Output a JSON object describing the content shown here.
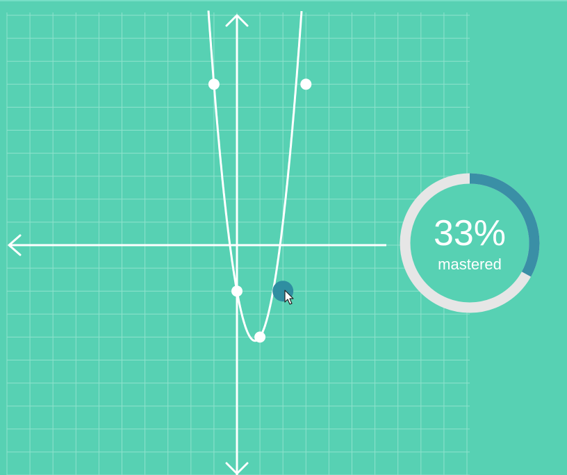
{
  "colors": {
    "background": "#57d1b3",
    "grid_line": "#8fe2cd",
    "axis": "#ffffff",
    "curve": "#ffffff",
    "point": "#ffffff",
    "active_point": "#2f8ea1",
    "ring_track": "#e6e6e6",
    "ring_fill": "#3a8fa6",
    "ring_inner": "#57d1b3"
  },
  "graph": {
    "x_range": [
      -10,
      10
    ],
    "y_range": [
      -10,
      10
    ],
    "curve_type": "parabola",
    "points": [
      {
        "x": -1,
        "y": 7
      },
      {
        "x": 3,
        "y": 7
      },
      {
        "x": 0,
        "y": -2
      },
      {
        "x": 1,
        "y": -4
      }
    ],
    "active_point": {
      "x": 2,
      "y": -2
    }
  },
  "mastery": {
    "percent_text": "33%",
    "label": "mastered",
    "fraction": 0.33
  }
}
